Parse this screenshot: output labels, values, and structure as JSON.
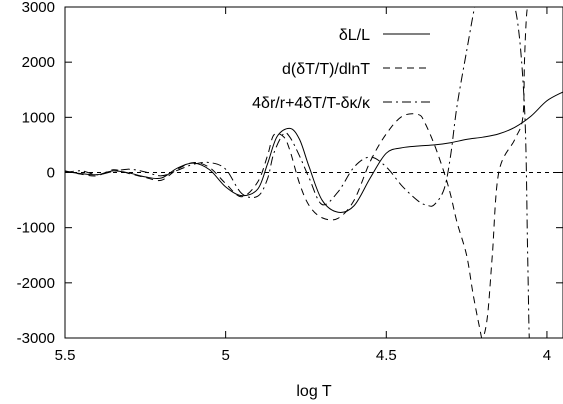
{
  "chart_data": {
    "type": "line",
    "xlabel": "log T",
    "ylabel": "",
    "title": "",
    "xlim": [
      5.5,
      3.95
    ],
    "ylim": [
      -3000,
      3000
    ],
    "x_reversed": true,
    "xticks": [
      5.5,
      5,
      4.5,
      4
    ],
    "xtick_labels": [
      "5.5",
      "5",
      "4.5",
      "4"
    ],
    "yticks": [
      -3000,
      -2000,
      -1000,
      0,
      1000,
      2000,
      3000
    ],
    "ytick_labels": [
      "-3000",
      "-2000",
      "-1000",
      "0",
      "1000",
      "2000",
      "3000"
    ],
    "grid": false,
    "legend_position": "top-right",
    "zero_line": {
      "y": 0,
      "style": "dashed"
    },
    "series": [
      {
        "name": "δL/L",
        "dash": "solid",
        "x": [
          5.5,
          5.45,
          5.4,
          5.35,
          5.3,
          5.25,
          5.2,
          5.15,
          5.1,
          5.05,
          5.0,
          4.95,
          4.9,
          4.87,
          4.84,
          4.8,
          4.77,
          4.74,
          4.7,
          4.65,
          4.6,
          4.55,
          4.5,
          4.45,
          4.4,
          4.35,
          4.3,
          4.25,
          4.2,
          4.15,
          4.1,
          4.05,
          4.0,
          3.95
        ],
        "y": [
          20,
          -20,
          -40,
          30,
          -10,
          -80,
          -100,
          80,
          170,
          50,
          -260,
          -420,
          -300,
          150,
          650,
          800,
          600,
          100,
          -500,
          -720,
          -600,
          -100,
          350,
          450,
          480,
          500,
          540,
          600,
          640,
          700,
          820,
          1020,
          1300,
          1460
        ]
      },
      {
        "name": "d(δT/T)/dlnT",
        "dash": "dashed",
        "x": [
          5.5,
          5.45,
          5.4,
          5.35,
          5.3,
          5.25,
          5.2,
          5.15,
          5.1,
          5.05,
          5.0,
          4.95,
          4.9,
          4.87,
          4.85,
          4.82,
          4.8,
          4.77,
          4.74,
          4.7,
          4.65,
          4.6,
          4.55,
          4.5,
          4.45,
          4.4,
          4.38,
          4.35,
          4.32,
          4.3,
          4.28,
          4.25,
          4.23,
          4.21,
          4.2,
          4.185,
          4.17,
          4.15,
          4.1,
          4.075,
          4.07,
          4.065,
          4.06,
          4.05,
          4.04
        ],
        "y": [
          30,
          -30,
          -60,
          50,
          -20,
          -90,
          -140,
          60,
          180,
          90,
          -200,
          -440,
          -170,
          300,
          680,
          650,
          400,
          -200,
          -600,
          -820,
          -830,
          -500,
          200,
          700,
          1020,
          1050,
          900,
          500,
          0,
          -400,
          -900,
          -1500,
          -2200,
          -2800,
          -3000,
          -2600,
          -1500,
          0,
          600,
          1000,
          2000,
          2700,
          3000,
          3000,
          3000
        ]
      },
      {
        "name": "4δr/r+4δT/T-δκ/κ",
        "dash": "dashdot",
        "x": [
          5.5,
          5.45,
          5.4,
          5.35,
          5.3,
          5.25,
          5.2,
          5.15,
          5.1,
          5.05,
          5.0,
          4.95,
          4.9,
          4.87,
          4.85,
          4.82,
          4.8,
          4.77,
          4.74,
          4.7,
          4.65,
          4.6,
          4.55,
          4.5,
          4.45,
          4.4,
          4.37,
          4.35,
          4.32,
          4.3,
          4.28,
          4.25,
          4.225,
          4.22,
          4.2,
          4.15,
          4.1,
          4.07,
          4.06,
          4.055,
          4.05
        ],
        "y": [
          0,
          30,
          -40,
          20,
          60,
          10,
          -60,
          40,
          150,
          180,
          60,
          -380,
          -430,
          -120,
          350,
          700,
          640,
          300,
          -100,
          -580,
          -350,
          100,
          280,
          100,
          -250,
          -520,
          -600,
          -580,
          -300,
          300,
          1200,
          2200,
          3000,
          3000,
          3000,
          3000,
          3000,
          1200,
          -1500,
          -3000,
          -3000
        ]
      }
    ]
  }
}
